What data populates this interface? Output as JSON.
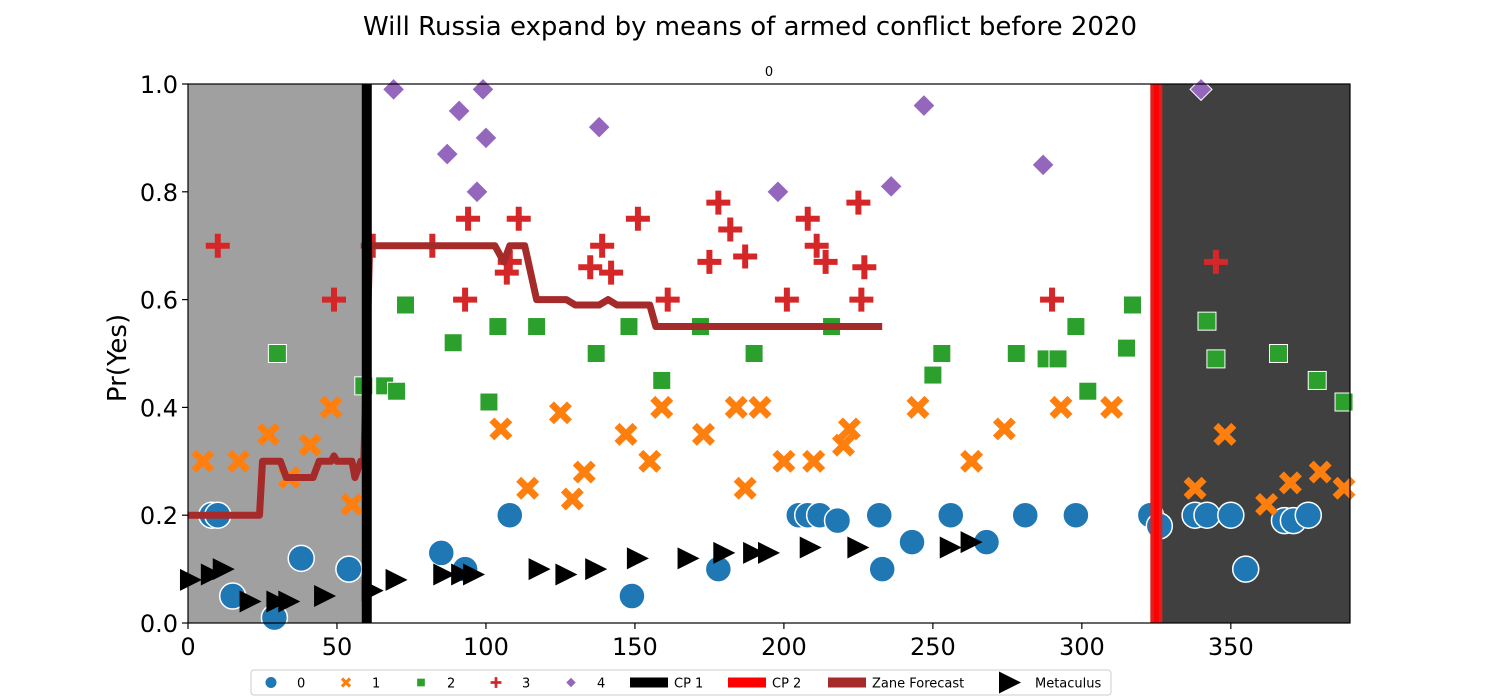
{
  "chart_data": {
    "type": "scatter",
    "title": "Will Russia expand by means of armed conflict before 2020",
    "subtitle": "0",
    "xlabel": "",
    "ylabel": "Pr(Yes)",
    "xlim": [
      0,
      390
    ],
    "ylim": [
      0,
      1.0
    ],
    "xticks": [
      0,
      50,
      100,
      150,
      200,
      250,
      300,
      350
    ],
    "yticks": [
      0.0,
      0.2,
      0.4,
      0.6,
      0.8,
      1.0
    ],
    "grid": false,
    "legend_position": "bottom-center",
    "colors": {
      "s0": "#1f77b4",
      "s1": "#ff7f0e",
      "s2": "#2ca02c",
      "s3": "#d62728",
      "s4": "#9467bd",
      "cp1": "#000000",
      "cp2": "#ff0000",
      "zane": "#a52a2a",
      "metaculus": "#000000",
      "pre_shade": "#a0a0a0",
      "post_shade": "#404040"
    },
    "shaded_regions": [
      {
        "from": 0,
        "to": 59,
        "tone": "light-gray"
      },
      {
        "from": 325,
        "to": 390,
        "tone": "dark-gray"
      }
    ],
    "change_points": [
      {
        "name": "CP 1",
        "x": 60
      },
      {
        "name": "CP 2",
        "x": 325
      }
    ],
    "series": [
      {
        "name": "0",
        "marker": "circle",
        "points": [
          [
            8,
            0.2
          ],
          [
            10,
            0.2
          ],
          [
            15,
            0.05
          ],
          [
            29,
            0.01
          ],
          [
            38,
            0.12
          ],
          [
            54,
            0.1
          ],
          [
            85,
            0.13
          ],
          [
            93,
            0.1
          ],
          [
            108,
            0.2
          ],
          [
            149,
            0.05
          ],
          [
            178,
            0.1
          ],
          [
            205,
            0.2
          ],
          [
            208,
            0.2
          ],
          [
            212,
            0.2
          ],
          [
            218,
            0.19
          ],
          [
            232,
            0.2
          ],
          [
            233,
            0.1
          ],
          [
            243,
            0.15
          ],
          [
            256,
            0.2
          ],
          [
            268,
            0.15
          ],
          [
            281,
            0.2
          ],
          [
            298,
            0.2
          ],
          [
            323,
            0.2
          ],
          [
            326,
            0.18
          ],
          [
            338,
            0.2
          ],
          [
            342,
            0.2
          ],
          [
            350,
            0.2
          ],
          [
            355,
            0.1
          ],
          [
            368,
            0.19
          ],
          [
            371,
            0.19
          ],
          [
            376,
            0.2
          ]
        ]
      },
      {
        "name": "1",
        "marker": "x",
        "points": [
          [
            5,
            0.3
          ],
          [
            17,
            0.3
          ],
          [
            27,
            0.35
          ],
          [
            34,
            0.27
          ],
          [
            41,
            0.33
          ],
          [
            48,
            0.4
          ],
          [
            55,
            0.22
          ],
          [
            105,
            0.36
          ],
          [
            114,
            0.25
          ],
          [
            125,
            0.39
          ],
          [
            129,
            0.23
          ],
          [
            133,
            0.28
          ],
          [
            147,
            0.35
          ],
          [
            155,
            0.3
          ],
          [
            159,
            0.4
          ],
          [
            173,
            0.35
          ],
          [
            184,
            0.4
          ],
          [
            187,
            0.25
          ],
          [
            192,
            0.4
          ],
          [
            200,
            0.3
          ],
          [
            210,
            0.3
          ],
          [
            220,
            0.33
          ],
          [
            222,
            0.36
          ],
          [
            245,
            0.4
          ],
          [
            263,
            0.3
          ],
          [
            274,
            0.36
          ],
          [
            293,
            0.4
          ],
          [
            310,
            0.4
          ],
          [
            338,
            0.25
          ],
          [
            348,
            0.35
          ],
          [
            362,
            0.22
          ],
          [
            370,
            0.26
          ],
          [
            380,
            0.28
          ],
          [
            388,
            0.25
          ]
        ]
      },
      {
        "name": "2",
        "marker": "square",
        "points": [
          [
            30,
            0.5
          ],
          [
            59,
            0.44
          ],
          [
            66,
            0.44
          ],
          [
            70,
            0.43
          ],
          [
            73,
            0.59
          ],
          [
            89,
            0.52
          ],
          [
            101,
            0.41
          ],
          [
            104,
            0.55
          ],
          [
            117,
            0.55
          ],
          [
            137,
            0.5
          ],
          [
            148,
            0.55
          ],
          [
            159,
            0.45
          ],
          [
            172,
            0.55
          ],
          [
            190,
            0.5
          ],
          [
            216,
            0.55
          ],
          [
            250,
            0.46
          ],
          [
            253,
            0.5
          ],
          [
            278,
            0.5
          ],
          [
            288,
            0.49
          ],
          [
            292,
            0.49
          ],
          [
            298,
            0.55
          ],
          [
            302,
            0.43
          ],
          [
            315,
            0.51
          ],
          [
            317,
            0.59
          ],
          [
            342,
            0.56
          ],
          [
            345,
            0.49
          ],
          [
            366,
            0.5
          ],
          [
            379,
            0.45
          ],
          [
            388,
            0.41
          ]
        ]
      },
      {
        "name": "3",
        "marker": "plus",
        "points": [
          [
            10,
            0.7
          ],
          [
            49,
            0.6
          ],
          [
            62,
            0.7
          ],
          [
            82,
            0.7
          ],
          [
            93,
            0.6
          ],
          [
            94,
            0.75
          ],
          [
            107,
            0.65
          ],
          [
            108,
            0.67
          ],
          [
            111,
            0.75
          ],
          [
            135,
            0.66
          ],
          [
            139,
            0.7
          ],
          [
            142,
            0.65
          ],
          [
            151,
            0.75
          ],
          [
            161,
            0.6
          ],
          [
            175,
            0.67
          ],
          [
            178,
            0.78
          ],
          [
            182,
            0.73
          ],
          [
            187,
            0.68
          ],
          [
            201,
            0.6
          ],
          [
            208,
            0.75
          ],
          [
            211,
            0.7
          ],
          [
            214,
            0.67
          ],
          [
            225,
            0.78
          ],
          [
            226,
            0.6
          ],
          [
            227,
            0.66
          ],
          [
            290,
            0.6
          ],
          [
            345,
            0.67
          ]
        ]
      },
      {
        "name": "4",
        "marker": "diamond",
        "points": [
          [
            69,
            0.99
          ],
          [
            87,
            0.87
          ],
          [
            91,
            0.95
          ],
          [
            97,
            0.8
          ],
          [
            99,
            0.99
          ],
          [
            100,
            0.9
          ],
          [
            138,
            0.92
          ],
          [
            198,
            0.8
          ],
          [
            236,
            0.81
          ],
          [
            247,
            0.96
          ],
          [
            287,
            0.85
          ],
          [
            340,
            0.99
          ]
        ]
      },
      {
        "name": "Zane Forecast",
        "marker": "line",
        "points": [
          [
            0,
            0.2
          ],
          [
            24,
            0.2
          ],
          [
            25,
            0.3
          ],
          [
            31,
            0.3
          ],
          [
            33,
            0.27
          ],
          [
            42,
            0.27
          ],
          [
            44,
            0.3
          ],
          [
            48,
            0.3
          ],
          [
            49,
            0.31
          ],
          [
            50,
            0.3
          ],
          [
            55,
            0.3
          ],
          [
            56,
            0.27
          ],
          [
            58,
            0.3
          ],
          [
            59,
            0.3
          ],
          [
            61,
            0.7
          ],
          [
            103,
            0.7
          ],
          [
            106,
            0.67
          ],
          [
            108,
            0.7
          ],
          [
            113,
            0.7
          ],
          [
            117,
            0.6
          ],
          [
            127,
            0.6
          ],
          [
            130,
            0.59
          ],
          [
            138,
            0.59
          ],
          [
            141,
            0.6
          ],
          [
            144,
            0.59
          ],
          [
            155,
            0.59
          ],
          [
            157,
            0.55
          ],
          [
            233,
            0.55
          ]
        ]
      },
      {
        "name": "Metaculus",
        "marker": "triangle-right",
        "points": [
          [
            1,
            0.08
          ],
          [
            8,
            0.09
          ],
          [
            12,
            0.1
          ],
          [
            21,
            0.04
          ],
          [
            30,
            0.04
          ],
          [
            34,
            0.04
          ],
          [
            46,
            0.05
          ],
          [
            62,
            0.06
          ],
          [
            70,
            0.08
          ],
          [
            86,
            0.09
          ],
          [
            92,
            0.09
          ],
          [
            96,
            0.09
          ],
          [
            118,
            0.1
          ],
          [
            127,
            0.09
          ],
          [
            137,
            0.1
          ],
          [
            151,
            0.12
          ],
          [
            168,
            0.12
          ],
          [
            180,
            0.13
          ],
          [
            190,
            0.13
          ],
          [
            195,
            0.13
          ],
          [
            209,
            0.14
          ],
          [
            225,
            0.14
          ],
          [
            256,
            0.14
          ],
          [
            263,
            0.15
          ]
        ]
      }
    ],
    "legend": [
      {
        "label": "0",
        "key": "s0",
        "marker": "circle"
      },
      {
        "label": "1",
        "key": "s1",
        "marker": "x"
      },
      {
        "label": "2",
        "key": "s2",
        "marker": "square"
      },
      {
        "label": "3",
        "key": "s3",
        "marker": "plus"
      },
      {
        "label": "4",
        "key": "s4",
        "marker": "diamond"
      },
      {
        "label": "CP 1",
        "key": "cp1",
        "marker": "bar"
      },
      {
        "label": "CP 2",
        "key": "cp2",
        "marker": "bar"
      },
      {
        "label": "Zane Forecast",
        "key": "zane",
        "marker": "bar"
      },
      {
        "label": "Metaculus",
        "key": "metaculus",
        "marker": "triangle-right"
      }
    ]
  }
}
